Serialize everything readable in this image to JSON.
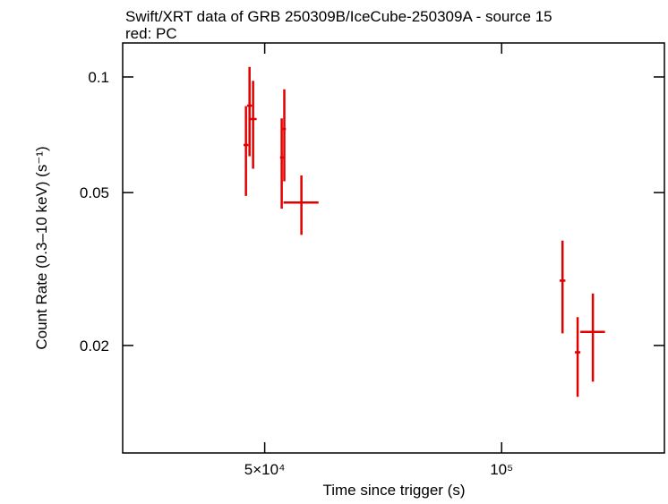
{
  "chart_data": {
    "type": "errorbar",
    "title": "Swift/XRT data of GRB 250309B/IceCube-250309A - source 15",
    "subtitle": "red: PC",
    "x_label": "Time since trigger (s)",
    "y_label": "Count Rate (0.3–10 keV) (s⁻¹)",
    "xscale": "log",
    "yscale": "log",
    "xlim": [
      33000,
      161000
    ],
    "ylim": [
      0.0105,
      0.1226
    ],
    "xticks": [
      {
        "value": 50000,
        "label": "5×10⁴"
      },
      {
        "value": 100000,
        "label": "10⁵"
      }
    ],
    "yticks": [
      {
        "value": 0.1,
        "label": "0.1"
      },
      {
        "value": 0.05,
        "label": "0.05"
      },
      {
        "value": 0.02,
        "label": "0.02"
      }
    ],
    "series": [
      {
        "color": "#e00000",
        "x": [
          47330,
          47830,
          48330,
          52550,
          52950,
          55670,
          119500,
          124900,
          130600
        ],
        "xerr": [
          330,
          330,
          500,
          250,
          250,
          2850,
          1000,
          1000,
          4700
        ],
        "y": [
          0.0665,
          0.0842,
          0.0777,
          0.0617,
          0.0732,
          0.0471,
          0.0295,
          0.0192,
          0.0217
        ],
        "yerr": [
          0.0175,
          0.022,
          0.02,
          0.0163,
          0.0197,
          0.0083,
          0.008,
          0.0045,
          0.0056
        ]
      }
    ]
  }
}
